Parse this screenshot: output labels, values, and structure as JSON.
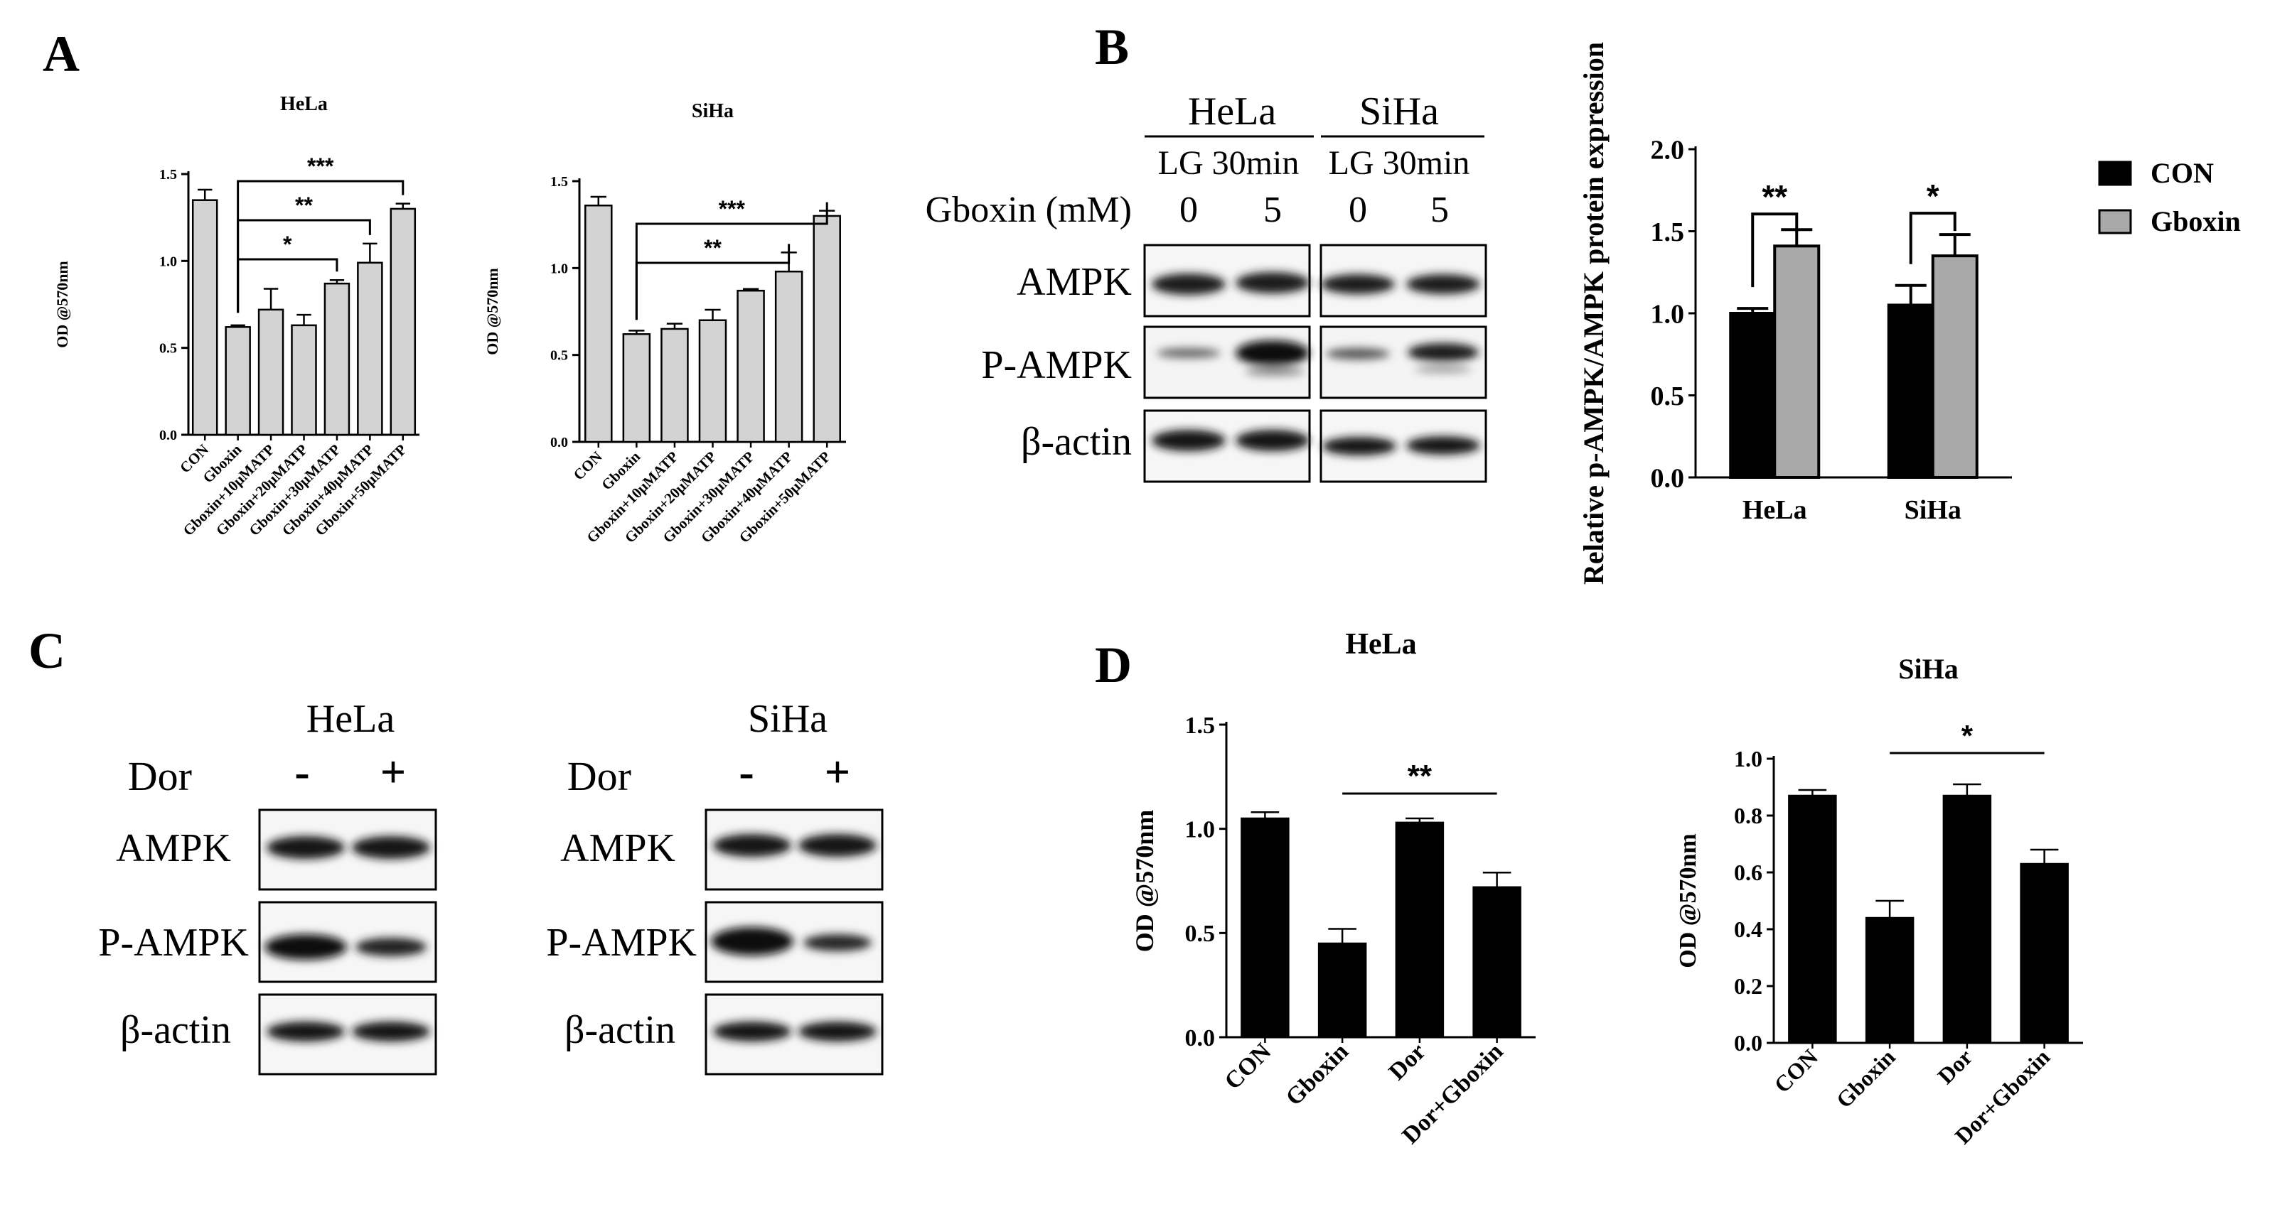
{
  "panels": {
    "A": "A",
    "B": "B",
    "C": "C",
    "D": "D"
  },
  "chart_data": [
    {
      "id": "A-hela",
      "type": "bar",
      "title": "HeLa",
      "ylabel": "OD @570nm",
      "xlabel": "",
      "categories": [
        "CON",
        "Gboxin",
        "Gboxin+10μMATP",
        "Gboxin+20μMATP",
        "Gboxin+30μMATP",
        "Gboxin+40μMATP",
        "Gboxin+50μMATP"
      ],
      "values": [
        1.35,
        0.62,
        0.72,
        0.63,
        0.87,
        0.99,
        1.3
      ],
      "errors": [
        0.06,
        0.01,
        0.12,
        0.06,
        0.02,
        0.11,
        0.03
      ],
      "ylim": [
        0,
        1.5
      ],
      "yticks": [
        "0.0",
        "0.5",
        "1.0",
        "1.5"
      ],
      "colors": {
        "bar": "#d3d3d3",
        "edge": "#000000"
      },
      "significance": [
        {
          "from": 1,
          "to": 4,
          "label": "*"
        },
        {
          "from": 1,
          "to": 5,
          "label": "**"
        },
        {
          "from": 1,
          "to": 6,
          "label": "***"
        }
      ]
    },
    {
      "id": "A-siha",
      "type": "bar",
      "title": "SiHa",
      "ylabel": "OD @570nm",
      "xlabel": "",
      "categories": [
        "CON",
        "Gboxin",
        "Gboxin+10μMATP",
        "Gboxin+20μMATP",
        "Gboxin+30μMATP",
        "Gboxin+40μMATP",
        "Gboxin+50μMATP"
      ],
      "values": [
        1.36,
        0.62,
        0.65,
        0.7,
        0.87,
        0.98,
        1.3
      ],
      "errors": [
        0.05,
        0.02,
        0.03,
        0.06,
        0.01,
        0.11,
        0.03
      ],
      "ylim": [
        0,
        1.5
      ],
      "yticks": [
        "0.0",
        "0.5",
        "1.0",
        "1.5"
      ],
      "colors": {
        "bar": "#d3d3d3",
        "edge": "#000000"
      },
      "significance": [
        {
          "from": 1,
          "to": 5,
          "label": "**"
        },
        {
          "from": 1,
          "to": 6,
          "label": "***"
        }
      ]
    },
    {
      "id": "B-bar",
      "type": "bar",
      "title": "",
      "ylabel": "Relative p-AMPK/AMPK protein expression",
      "xlabel": "",
      "categories": [
        "HeLa",
        "SiHa"
      ],
      "series": [
        {
          "name": "CON",
          "values": [
            1.0,
            1.05
          ],
          "errors": [
            0.03,
            0.12
          ],
          "color": "#000000"
        },
        {
          "name": "Gboxin",
          "values": [
            1.41,
            1.35
          ],
          "errors": [
            0.1,
            0.13
          ],
          "color": "#a9a9a9"
        }
      ],
      "ylim": [
        0,
        2.0
      ],
      "yticks": [
        "0.0",
        "0.5",
        "1.0",
        "1.5",
        "2.0"
      ],
      "legend": "right",
      "significance": [
        {
          "group": 0,
          "label": "**"
        },
        {
          "group": 1,
          "label": "*"
        }
      ]
    },
    {
      "id": "D-hela",
      "type": "bar",
      "title": "HeLa",
      "ylabel": "OD @570nm",
      "xlabel": "",
      "categories": [
        "CON",
        "Gboxin",
        "Dor",
        "Dor+Gboxin"
      ],
      "values": [
        1.05,
        0.45,
        1.03,
        0.72
      ],
      "errors": [
        0.03,
        0.07,
        0.02,
        0.07
      ],
      "ylim": [
        0,
        1.5
      ],
      "yticks": [
        "0.0",
        "0.5",
        "1.0",
        "1.5"
      ],
      "colors": {
        "bar": "#000000",
        "edge": "#000000"
      },
      "significance": [
        {
          "from": 1,
          "to": 3,
          "label": "**"
        }
      ]
    },
    {
      "id": "D-siha",
      "type": "bar",
      "title": "SiHa",
      "ylabel": "OD @570nm",
      "xlabel": "",
      "categories": [
        "CON",
        "Gboxin",
        "Dor",
        "Dor+Gboxin"
      ],
      "values": [
        0.87,
        0.44,
        0.87,
        0.63
      ],
      "errors": [
        0.02,
        0.06,
        0.04,
        0.05
      ],
      "ylim": [
        0,
        1.0
      ],
      "yticks": [
        "0.0",
        "0.2",
        "0.4",
        "0.6",
        "0.8",
        "1.0"
      ],
      "colors": {
        "bar": "#000000",
        "edge": "#000000"
      },
      "significance": [
        {
          "from": 1,
          "to": 3,
          "label": "*"
        }
      ]
    }
  ],
  "blot_B": {
    "cell_lines": [
      "HeLa",
      "SiHa"
    ],
    "condition": "LG 30min",
    "treatment_label": "Gboxin (mM)",
    "doses": [
      "0",
      "5",
      "0",
      "5"
    ],
    "rows": [
      "AMPK",
      "P-AMPK",
      "β-actin"
    ]
  },
  "blot_C": {
    "cell_lines": [
      "HeLa",
      "SiHa"
    ],
    "treatment_label": "Dor",
    "doses": [
      "-",
      "+"
    ],
    "rows": [
      "AMPK",
      "P-AMPK",
      "β-actin"
    ]
  }
}
